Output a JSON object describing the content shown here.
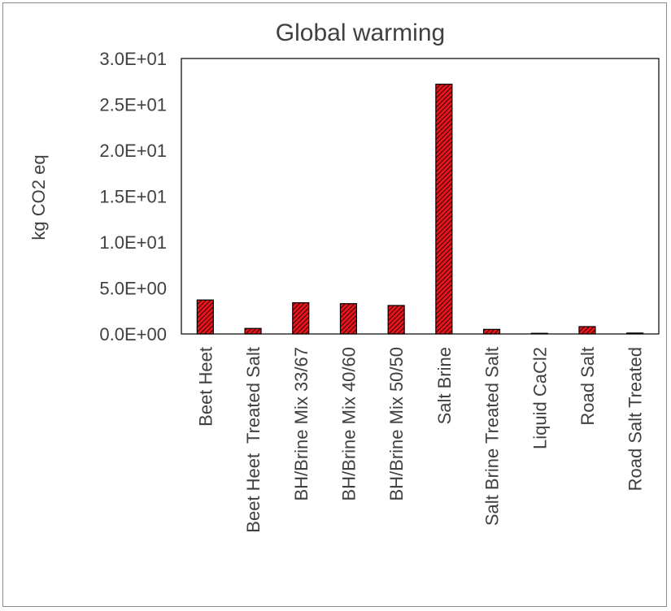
{
  "chart_data": {
    "type": "bar",
    "title": "Global warming",
    "xlabel": "",
    "ylabel": "kg CO2 eq",
    "categories": [
      "Beet Heet",
      "Beet Heet  Treated Salt",
      "BH/Brine Mix 33/67",
      "BH/Brine Mix 40/60",
      "BH/Brine Mix 50/50",
      "Salt Brine",
      "Salt Brine Treated Salt",
      "Liquid CaCl2",
      "Road Salt",
      "Road Salt Treated"
    ],
    "values": [
      3.7,
      0.6,
      3.4,
      3.3,
      3.1,
      27.2,
      0.5,
      0.05,
      0.8,
      0.1
    ],
    "ylim": [
      0,
      30
    ],
    "yticks": [
      0,
      5,
      10,
      15,
      20,
      25,
      30
    ],
    "ytick_labels": [
      "0.0E+00",
      "5.0E+00",
      "1.0E+01",
      "1.5E+01",
      "2.0E+01",
      "2.5E+01",
      "3.0E+01"
    ],
    "grid": false,
    "legend": "none",
    "bar_color": "#e8141c",
    "bar_pattern": "diagonal hatch",
    "bar_outline_color": "#000000"
  }
}
